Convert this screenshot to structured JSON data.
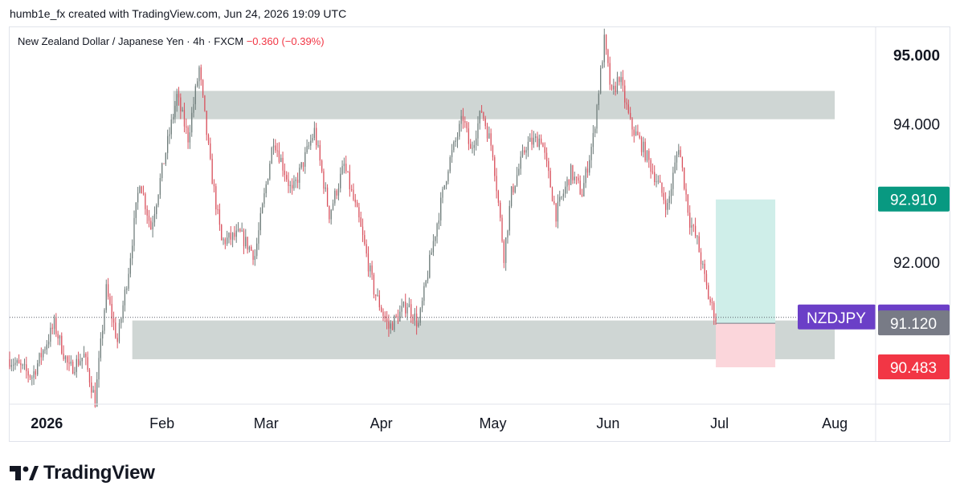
{
  "header": "humb1e_fx created with TradingView.com, Jun 24, 2026 19:09 UTC",
  "legend": {
    "name": "New Zealand Dollar / Japanese Yen · 4h · FXCM",
    "change": "−0.360 (−0.39%)"
  },
  "brand": {
    "logo_icon": "tradingview-logo-icon",
    "text": "TradingView"
  },
  "colors": {
    "up": "#089981",
    "down": "#f23645",
    "candle_up": "#6e7c7a",
    "candle_down": "#d9525e",
    "zone": "#cfd6d4",
    "target_zone": "#cfeee9",
    "stop_zone": "#fbd6db",
    "symbol_tag": "#6b3fc7",
    "last_price_tag": "#787b86"
  },
  "chart_data": {
    "type": "candlestick",
    "symbol": "NZDJPY",
    "timeframe": "4h",
    "x_ticks": [
      "2026",
      "Feb",
      "Mar",
      "Apr",
      "May",
      "Jun",
      "Jul",
      "Aug"
    ],
    "x_tick_dates": [
      "2026-01-01",
      "2026-02-01",
      "2026-03-01",
      "2026-04-01",
      "2026-05-01",
      "2026-06-01",
      "2026-07-01",
      "2026-08-01"
    ],
    "x_range": [
      "2025-12-22",
      "2026-08-12"
    ],
    "y_ticks": [
      95,
      94,
      92
    ],
    "y_tick_labels": [
      "95.000",
      "94.000",
      "92.000"
    ],
    "y_range": [
      89.95,
      95.4
    ],
    "price_path": [
      [
        "2025-12-22",
        90.6
      ],
      [
        "2025-12-28",
        90.35
      ],
      [
        "2026-01-03",
        91.1
      ],
      [
        "2026-01-07",
        90.45
      ],
      [
        "2026-01-11",
        90.65
      ],
      [
        "2026-01-14",
        90.0
      ],
      [
        "2026-01-17",
        91.6
      ],
      [
        "2026-01-20",
        90.85
      ],
      [
        "2026-01-23",
        91.9
      ],
      [
        "2026-01-26",
        93.2
      ],
      [
        "2026-01-29",
        92.5
      ],
      [
        "2026-02-02",
        93.6
      ],
      [
        "2026-02-05",
        94.4
      ],
      [
        "2026-02-08",
        93.8
      ],
      [
        "2026-02-11",
        94.8
      ],
      [
        "2026-02-14",
        93.4
      ],
      [
        "2026-02-17",
        92.3
      ],
      [
        "2026-02-22",
        92.4
      ],
      [
        "2026-02-26",
        92.1
      ],
      [
        "2026-03-03",
        93.8
      ],
      [
        "2026-03-08",
        93.0
      ],
      [
        "2026-03-14",
        93.9
      ],
      [
        "2026-03-18",
        92.7
      ],
      [
        "2026-03-22",
        93.4
      ],
      [
        "2026-03-26",
        92.6
      ],
      [
        "2026-03-30",
        91.6
      ],
      [
        "2026-04-03",
        91.05
      ],
      [
        "2026-04-08",
        91.4
      ],
      [
        "2026-04-11",
        91.1
      ],
      [
        "2026-04-15",
        92.3
      ],
      [
        "2026-04-19",
        93.4
      ],
      [
        "2026-04-23",
        94.1
      ],
      [
        "2026-04-25",
        93.6
      ],
      [
        "2026-04-28",
        94.2
      ],
      [
        "2026-05-01",
        93.6
      ],
      [
        "2026-05-04",
        92.1
      ],
      [
        "2026-05-06",
        93.0
      ],
      [
        "2026-05-10",
        93.7
      ],
      [
        "2026-05-14",
        93.8
      ],
      [
        "2026-05-18",
        92.7
      ],
      [
        "2026-05-22",
        93.3
      ],
      [
        "2026-05-25",
        93.0
      ],
      [
        "2026-05-28",
        93.8
      ],
      [
        "2026-05-31",
        95.2
      ],
      [
        "2026-06-02",
        94.4
      ],
      [
        "2026-06-04",
        94.7
      ],
      [
        "2026-06-07",
        94.0
      ],
      [
        "2026-06-10",
        93.7
      ],
      [
        "2026-06-14",
        93.2
      ],
      [
        "2026-06-17",
        92.8
      ],
      [
        "2026-06-20",
        93.7
      ],
      [
        "2026-06-23",
        92.6
      ],
      [
        "2026-06-25",
        92.3
      ],
      [
        "2026-06-28",
        91.5
      ],
      [
        "2026-06-30",
        91.2
      ]
    ],
    "zones": [
      {
        "name": "resistance",
        "from": "2026-02-04",
        "to": "2026-08-01",
        "top": 94.48,
        "bottom": 94.07
      },
      {
        "name": "support",
        "from": "2026-01-24",
        "to": "2026-08-01",
        "top": 91.16,
        "bottom": 90.6
      }
    ],
    "long_position": {
      "from": "2026-06-30",
      "to": "2026-07-16",
      "entry": 91.12,
      "target": 92.91,
      "stop": 90.483
    },
    "price_labels": [
      {
        "value": "95.000",
        "y": 95.0,
        "style": "bold"
      },
      {
        "value": "92.910",
        "y": 92.91,
        "style": "target"
      },
      {
        "symbol": "NZDJPY",
        "value": "91.205",
        "y": 91.205,
        "style": "symbol"
      },
      {
        "value": "91.120",
        "y": 91.12,
        "style": "last"
      },
      {
        "value": "90.483",
        "y": 90.483,
        "style": "stop"
      }
    ],
    "last_price": 91.205,
    "grid": false
  }
}
